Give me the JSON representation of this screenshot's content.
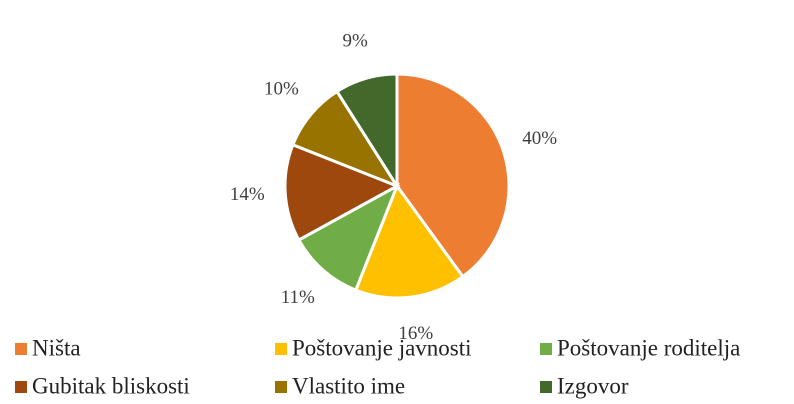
{
  "chart_data": {
    "type": "pie",
    "categories": [
      "Ništa",
      "Poštovanje javnosti",
      "Poštovanje roditelja",
      "Gubitak bliskosti",
      "Vlastito ime",
      "Izgovor"
    ],
    "values": [
      40,
      16,
      11,
      14,
      10,
      9
    ],
    "value_labels": [
      "40%",
      "16%",
      "11%",
      "14%",
      "10%",
      "9%"
    ],
    "colors": [
      "#ED7D31",
      "#FFC000",
      "#70AD47",
      "#9E480E",
      "#997300",
      "#43682B"
    ],
    "legend": "bottom"
  }
}
